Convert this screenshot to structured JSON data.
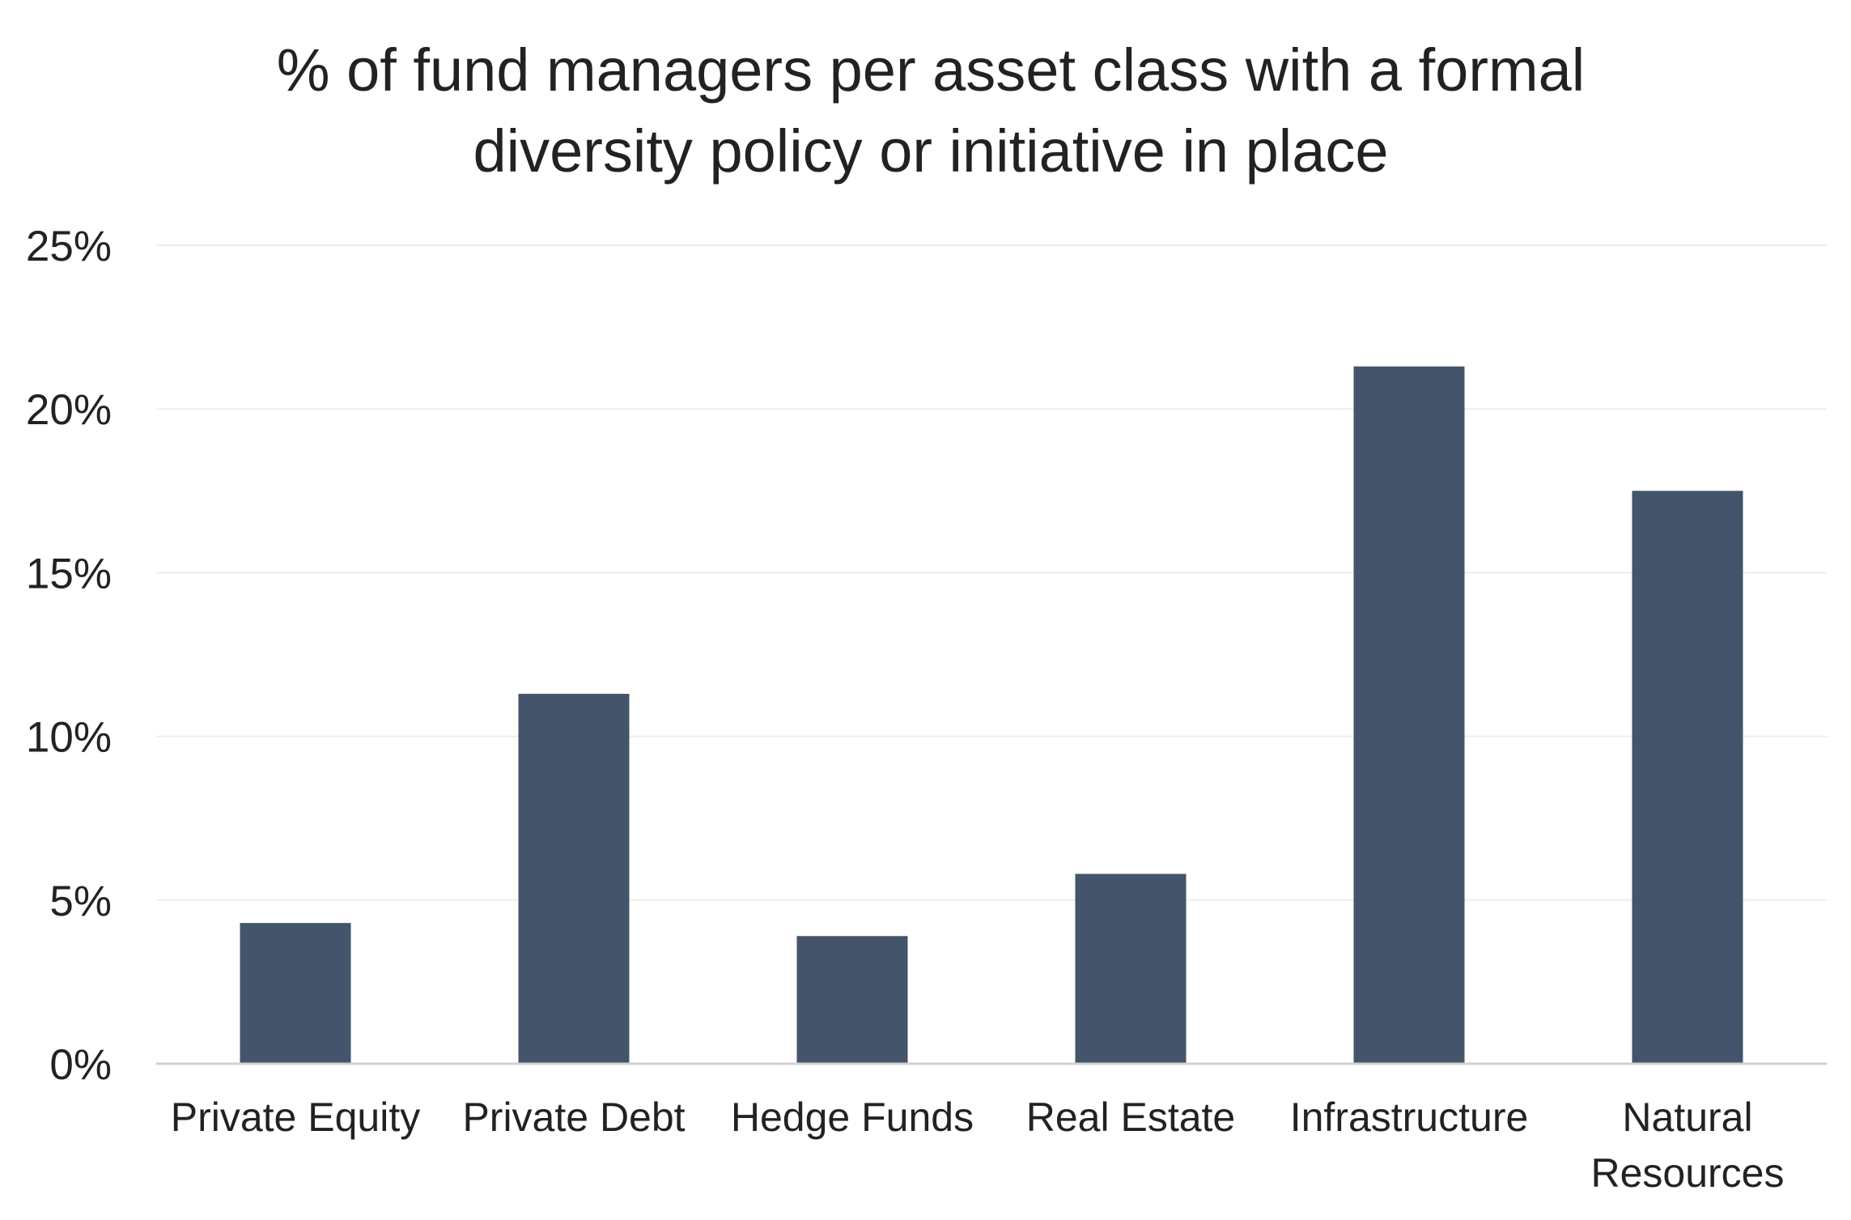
{
  "chart_data": {
    "type": "bar",
    "title": "% of fund managers per asset class with a formal diversity policy or initiative in place",
    "title_lines": [
      "% of fund managers per asset class with a formal",
      "diversity policy or initiative in place"
    ],
    "categories": [
      "Private Equity",
      "Private Debt",
      "Hedge Funds",
      "Real Estate",
      "Infrastructure",
      "Natural Resources"
    ],
    "category_label_lines": [
      [
        "Private Equity"
      ],
      [
        "Private Debt"
      ],
      [
        "Hedge Funds"
      ],
      [
        "Real Estate"
      ],
      [
        "Infrastructure"
      ],
      [
        "Natural",
        "Resources"
      ]
    ],
    "values": [
      4.3,
      11.3,
      3.9,
      5.8,
      21.3,
      17.5
    ],
    "unit": "%",
    "xlabel": "",
    "ylabel": "",
    "ylim": [
      0,
      25
    ],
    "yticks": [
      0,
      5,
      10,
      15,
      20,
      25
    ],
    "ytick_labels": [
      "0%",
      "5%",
      "10%",
      "15%",
      "20%",
      "25%"
    ],
    "grid": true,
    "legend": "none",
    "colors": {
      "bar": "#44546A",
      "grid": "#EDEDED",
      "axis": "#D0D0D0",
      "text": "#222222"
    }
  }
}
